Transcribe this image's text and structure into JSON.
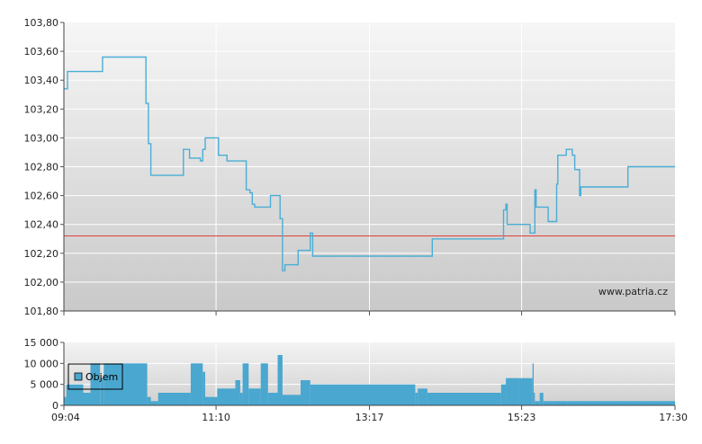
{
  "watermark": "www.patria.cz",
  "colors": {
    "price_line": "#4aaed6",
    "reference_line": "#e0403a",
    "volume_bars": "#4aa7cf",
    "grid": "#ffffff",
    "plot_bg_top": "#f4f4f4",
    "plot_bg_bottom": "#c8c8c8"
  },
  "chart_data": [
    {
      "type": "line",
      "title": "",
      "xlabel": "",
      "ylabel": "",
      "ylim": [
        101.8,
        103.8
      ],
      "y_ticks": [
        "101,80",
        "102,00",
        "102,20",
        "102,40",
        "102,60",
        "102,80",
        "103,00",
        "103,20",
        "103,40",
        "103,60",
        "103,80"
      ],
      "x_ticks": [
        "09:04",
        "11:10",
        "13:17",
        "15:23",
        "17:30"
      ],
      "xlim": [
        "09:04",
        "17:30"
      ],
      "grid": true,
      "reference_value": 102.32,
      "series": [
        {
          "style": "step",
          "points": [
            [
              "09:04",
              103.34
            ],
            [
              "09:07",
              103.46
            ],
            [
              "09:35",
              103.46
            ],
            [
              "09:36",
              103.56
            ],
            [
              "10:11",
              103.56
            ],
            [
              "10:12",
              103.24
            ],
            [
              "10:14",
              102.96
            ],
            [
              "10:16",
              102.74
            ],
            [
              "10:42",
              102.74
            ],
            [
              "10:43",
              102.92
            ],
            [
              "10:48",
              102.86
            ],
            [
              "10:57",
              102.84
            ],
            [
              "10:59",
              102.92
            ],
            [
              "11:01",
              103.0
            ],
            [
              "11:11",
              103.0
            ],
            [
              "11:12",
              102.88
            ],
            [
              "11:19",
              102.84
            ],
            [
              "11:34",
              102.84
            ],
            [
              "11:35",
              102.64
            ],
            [
              "11:38",
              102.62
            ],
            [
              "11:40",
              102.54
            ],
            [
              "11:42",
              102.52
            ],
            [
              "11:54",
              102.52
            ],
            [
              "11:55",
              102.6
            ],
            [
              "12:01",
              102.6
            ],
            [
              "12:03",
              102.44
            ],
            [
              "12:05",
              102.08
            ],
            [
              "12:07",
              102.12
            ],
            [
              "12:17",
              102.12
            ],
            [
              "12:18",
              102.22
            ],
            [
              "12:26",
              102.22
            ],
            [
              "12:28",
              102.34
            ],
            [
              "12:30",
              102.18
            ],
            [
              "14:07",
              102.18
            ],
            [
              "14:09",
              102.3
            ],
            [
              "15:07",
              102.3
            ],
            [
              "15:08",
              102.5
            ],
            [
              "15:10",
              102.54
            ],
            [
              "15:11",
              102.4
            ],
            [
              "15:29",
              102.4
            ],
            [
              "15:30",
              102.34
            ],
            [
              "15:33",
              102.34
            ],
            [
              "15:34",
              102.64
            ],
            [
              "15:35",
              102.52
            ],
            [
              "15:43",
              102.52
            ],
            [
              "15:45",
              102.42
            ],
            [
              "15:51",
              102.42
            ],
            [
              "15:52",
              102.68
            ],
            [
              "15:53",
              102.88
            ],
            [
              "15:59",
              102.88
            ],
            [
              "16:00",
              102.92
            ],
            [
              "16:05",
              102.88
            ],
            [
              "16:07",
              102.78
            ],
            [
              "16:10",
              102.78
            ],
            [
              "16:11",
              102.6
            ],
            [
              "16:12",
              102.66
            ],
            [
              "16:50",
              102.66
            ],
            [
              "16:51",
              102.8
            ],
            [
              "17:30",
              102.8
            ]
          ]
        }
      ]
    },
    {
      "type": "bar",
      "title": "",
      "xlabel": "",
      "ylabel": "",
      "ylim": [
        0,
        15000
      ],
      "y_ticks": [
        "0",
        "5 000",
        "10 000",
        "15 000"
      ],
      "x_ticks": [
        "09:04",
        "11:10",
        "13:17",
        "15:23",
        "17:30"
      ],
      "xlim": [
        "09:04",
        "17:30"
      ],
      "grid": true,
      "legend": {
        "label": "Objem",
        "position": "top-left"
      },
      "series": [
        {
          "name": "Objem",
          "segments": [
            [
              "09:04",
              "09:06",
              2000
            ],
            [
              "09:06",
              "09:20",
              5000
            ],
            [
              "09:20",
              "09:26",
              3000
            ],
            [
              "09:26",
              "09:34",
              10000
            ],
            [
              "09:34",
              "09:37",
              6500
            ],
            [
              "09:37",
              "10:13",
              10000
            ],
            [
              "10:13",
              "10:16",
              2000
            ],
            [
              "10:16",
              "10:22",
              1000
            ],
            [
              "10:22",
              "10:49",
              3000
            ],
            [
              "10:49",
              "10:59",
              10000
            ],
            [
              "10:59",
              "11:01",
              8000
            ],
            [
              "11:01",
              "11:11",
              2000
            ],
            [
              "11:11",
              "11:26",
              4000
            ],
            [
              "11:26",
              "11:30",
              6000
            ],
            [
              "11:30",
              "11:32",
              3000
            ],
            [
              "11:32",
              "11:37",
              10000
            ],
            [
              "11:37",
              "11:47",
              4000
            ],
            [
              "11:47",
              "11:53",
              10000
            ],
            [
              "11:53",
              "12:01",
              3000
            ],
            [
              "12:01",
              "12:05",
              12000
            ],
            [
              "12:05",
              "12:20",
              2500
            ],
            [
              "12:20",
              "12:28",
              6000
            ],
            [
              "12:28",
              "13:55",
              5000
            ],
            [
              "13:55",
              "13:57",
              3000
            ],
            [
              "13:57",
              "14:05",
              4000
            ],
            [
              "14:05",
              "15:06",
              3000
            ],
            [
              "15:06",
              "15:10",
              5000
            ],
            [
              "15:10",
              "15:21",
              6500
            ],
            [
              "15:21",
              "15:32",
              6500
            ],
            [
              "15:32",
              "15:33",
              10000
            ],
            [
              "15:33",
              "15:34",
              3000
            ],
            [
              "15:34",
              "15:38",
              1000
            ],
            [
              "15:38",
              "15:41",
              3000
            ],
            [
              "15:41",
              "15:50",
              1000
            ],
            [
              "15:50",
              "16:01",
              1000
            ],
            [
              "16:01",
              "17:30",
              1000
            ]
          ]
        }
      ]
    }
  ]
}
